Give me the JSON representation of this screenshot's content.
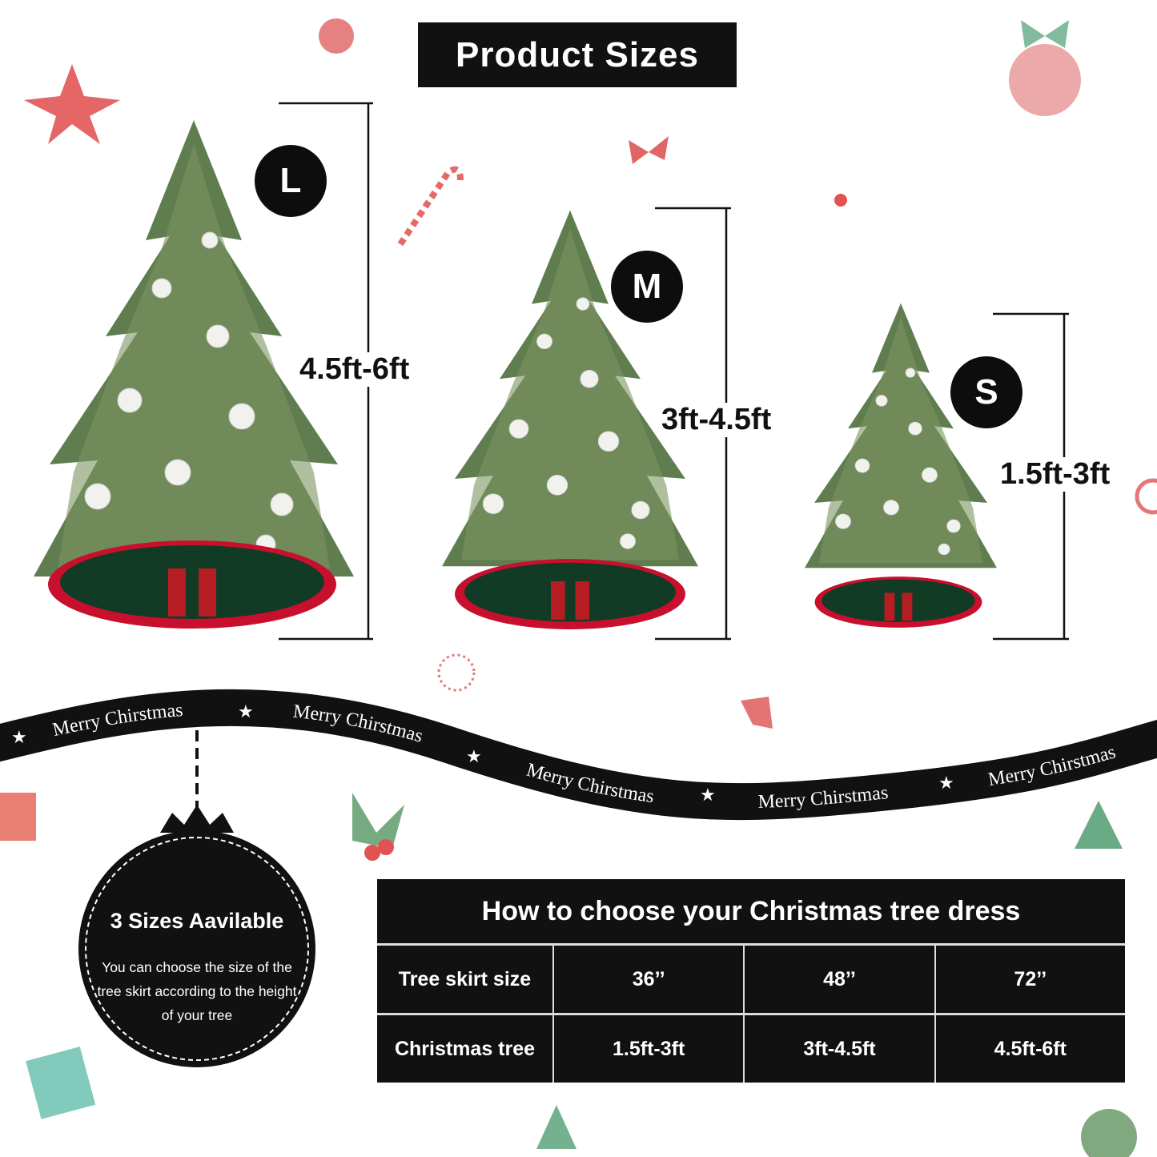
{
  "title": "Product Sizes",
  "sizes": [
    {
      "badge": "L",
      "range": "4.5ft-6ft"
    },
    {
      "badge": "M",
      "range": "3ft-4.5ft"
    },
    {
      "badge": "S",
      "range": "1.5ft-3ft"
    }
  ],
  "ribbon": {
    "items": [
      "Merry Chirstmas",
      "Merry Chirstmas",
      "Merry Chirstmas",
      "Merry Chirstmas",
      "Merry Chirstmas"
    ],
    "separator_icon": "star-icon"
  },
  "ornament": {
    "title": "3 Sizes Aavilable",
    "body": "You can choose the size of the tree skirt according to the height of your tree"
  },
  "table": {
    "title": "How to choose your Christmas tree dress",
    "rows": [
      {
        "label": "Tree skirt size",
        "values": [
          "36’’",
          "48’’",
          "72’’"
        ]
      },
      {
        "label": "Christmas tree",
        "values": [
          "1.5ft-3ft",
          "3ft-4.5ft",
          "4.5ft-6ft"
        ]
      }
    ]
  },
  "colors": {
    "black": "#111111",
    "tree_green": "#5f7d4f",
    "skirt_red": "#c8102e",
    "skirt_green": "#123b25"
  }
}
